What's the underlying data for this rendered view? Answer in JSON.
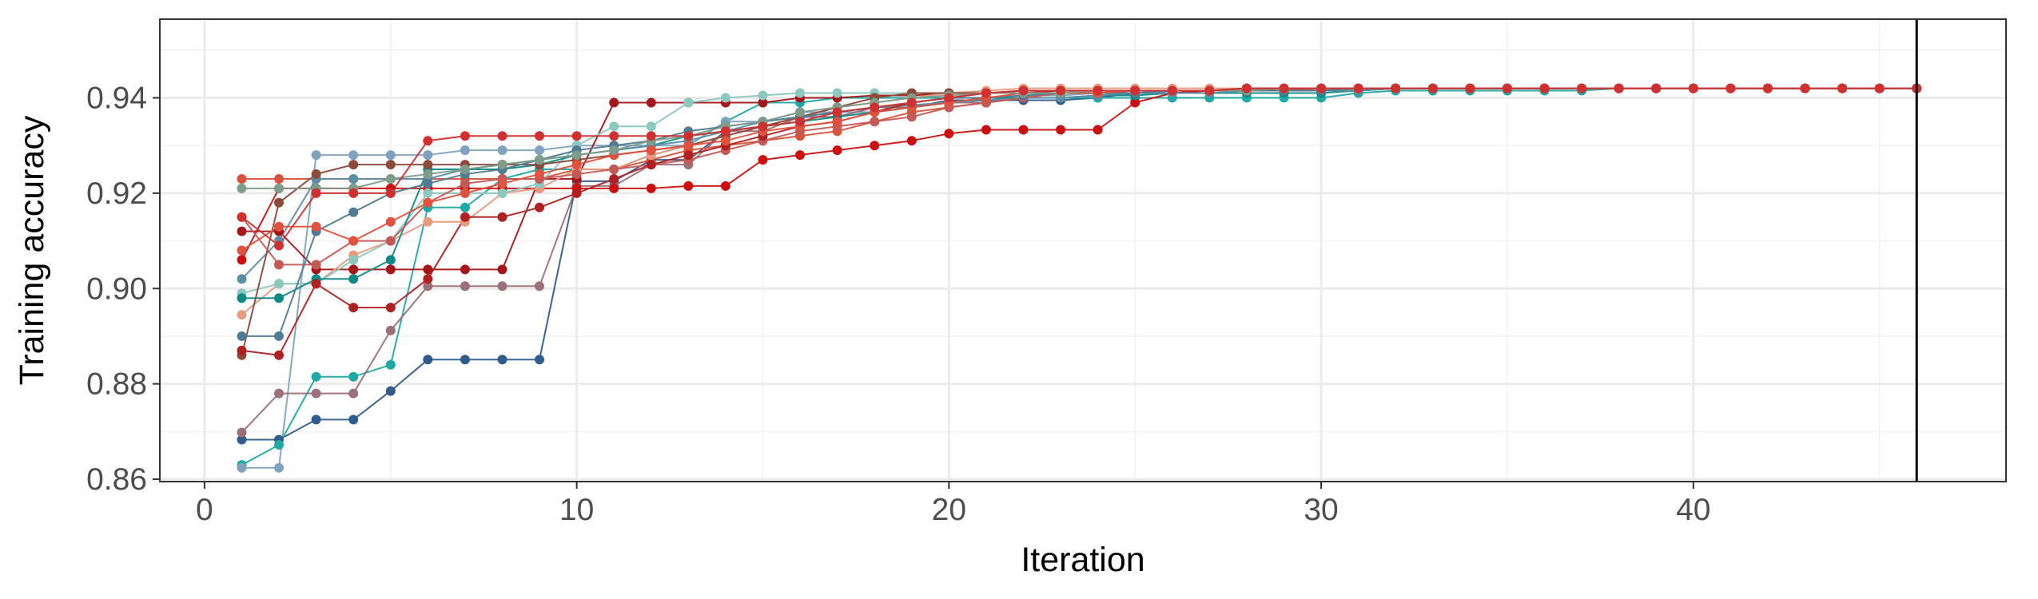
{
  "chart_data": {
    "type": "line",
    "title": "",
    "xlabel": "Iteration",
    "ylabel": "Training accuracy",
    "xlim": [
      -1.2,
      48.4
    ],
    "ylim": [
      0.8595,
      0.9565
    ],
    "x_ticks": [
      0,
      10,
      20,
      30,
      40
    ],
    "x_tick_labels": [
      "0",
      "10",
      "20",
      "30",
      "40"
    ],
    "y_ticks": [
      0.86,
      0.88,
      0.9,
      0.92,
      0.94
    ],
    "y_tick_labels": [
      "0.86",
      "0.88",
      "0.90",
      "0.92",
      "0.94"
    ],
    "grid": true,
    "legend": "none",
    "vline_x": 46,
    "final_value": 0.942,
    "series": [
      {
        "color": "#2F5C8C",
        "values": [
          0.8683,
          0.8683,
          0.8725,
          0.8725,
          0.8785,
          0.8851,
          0.8851,
          0.8851,
          0.8851,
          0.9225,
          0.9225,
          0.927,
          0.927,
          0.933,
          0.934,
          0.936,
          0.936,
          0.938,
          0.938,
          0.9395,
          0.9395,
          0.9395,
          0.9395,
          0.94,
          0.941,
          0.9415,
          0.9415,
          0.9415,
          0.9415,
          0.9415,
          0.9415,
          0.942,
          0.942,
          0.942,
          0.942,
          0.942,
          0.942,
          0.942,
          0.942,
          0.942,
          0.942,
          0.942,
          0.942,
          0.942,
          0.942,
          0.942
        ]
      },
      {
        "color": "#1FA9A6",
        "values": [
          0.863,
          0.8672,
          0.8815,
          0.8815,
          0.884,
          0.917,
          0.917,
          0.923,
          0.925,
          0.925,
          0.925,
          0.928,
          0.93,
          0.935,
          0.939,
          0.939,
          0.94,
          0.94,
          0.94,
          0.94,
          0.94,
          0.94,
          0.94,
          0.94,
          0.94,
          0.94,
          0.94,
          0.94,
          0.94,
          0.94,
          0.941,
          0.9415,
          0.9415,
          0.9415,
          0.9415,
          0.9415,
          0.9415,
          0.942,
          0.942,
          0.942,
          0.942,
          0.942,
          0.942,
          0.942,
          0.942,
          0.942
        ]
      },
      {
        "color": "#7FA3BE",
        "values": [
          0.8624,
          0.8624,
          0.928,
          0.928,
          0.928,
          0.928,
          0.929,
          0.929,
          0.929,
          0.93,
          0.93,
          0.93,
          0.93,
          0.935,
          0.935,
          0.937,
          0.937,
          0.937,
          0.938,
          0.939,
          0.94,
          0.9405,
          0.9405,
          0.941,
          0.941,
          0.941,
          0.9415,
          0.9415,
          0.9415,
          0.9415,
          0.9415,
          0.942,
          0.942,
          0.942,
          0.942,
          0.942,
          0.942,
          0.942,
          0.942,
          0.942,
          0.942,
          0.942,
          0.942,
          0.942,
          0.942,
          0.942
        ]
      },
      {
        "color": "#9B7078",
        "values": [
          0.8698,
          0.878,
          0.878,
          0.878,
          0.8912,
          0.9005,
          0.9005,
          0.9005,
          0.9005,
          0.9215,
          0.9215,
          0.926,
          0.926,
          0.933,
          0.933,
          0.936,
          0.936,
          0.938,
          0.938,
          0.939,
          0.939,
          0.94,
          0.94,
          0.9405,
          0.941,
          0.9415,
          0.9415,
          0.9415,
          0.9415,
          0.9415,
          0.9415,
          0.942,
          0.942,
          0.942,
          0.942,
          0.942,
          0.942,
          0.942,
          0.942,
          0.942,
          0.942,
          0.942,
          0.942,
          0.942,
          0.942,
          0.942
        ]
      },
      {
        "color": "#CC1010",
        "values": [
          0.906,
          0.921,
          0.921,
          0.921,
          0.921,
          0.921,
          0.921,
          0.921,
          0.921,
          0.921,
          0.921,
          0.921,
          0.9215,
          0.9215,
          0.927,
          0.928,
          0.929,
          0.93,
          0.931,
          0.9325,
          0.9333,
          0.9333,
          0.9333,
          0.9333,
          0.939,
          0.941,
          0.9415,
          0.9415,
          0.9415,
          0.9415,
          0.9415,
          0.942,
          0.942,
          0.942,
          0.942,
          0.942,
          0.942,
          0.942,
          0.942,
          0.942,
          0.942,
          0.942,
          0.942,
          0.942,
          0.942,
          0.942
        ]
      },
      {
        "color": "#A4161A",
        "values": [
          0.912,
          0.912,
          0.904,
          0.904,
          0.904,
          0.904,
          0.904,
          0.904,
          0.923,
          0.923,
          0.939,
          0.939,
          0.939,
          0.939,
          0.939,
          0.94,
          0.94,
          0.9405,
          0.9405,
          0.941,
          0.941,
          0.941,
          0.941,
          0.9415,
          0.9415,
          0.9415,
          0.9415,
          0.9415,
          0.9415,
          0.942,
          0.942,
          0.942,
          0.942,
          0.942,
          0.942,
          0.942,
          0.942,
          0.942,
          0.942,
          0.942,
          0.942,
          0.942,
          0.942,
          0.942,
          0.942,
          0.942
        ]
      },
      {
        "color": "#D9533A",
        "values": [
          0.923,
          0.923,
          0.923,
          0.923,
          0.923,
          0.923,
          0.923,
          0.923,
          0.923,
          0.925,
          0.925,
          0.927,
          0.929,
          0.93,
          0.931,
          0.932,
          0.933,
          0.935,
          0.937,
          0.938,
          0.939,
          0.94,
          0.941,
          0.941,
          0.9415,
          0.9415,
          0.9415,
          0.9415,
          0.9415,
          0.9415,
          0.942,
          0.942,
          0.942,
          0.942,
          0.942,
          0.942,
          0.942,
          0.942,
          0.942,
          0.942,
          0.942,
          0.942,
          0.942,
          0.942,
          0.942,
          0.942
        ]
      },
      {
        "color": "#E89A7E",
        "values": [
          0.8945,
          0.901,
          0.901,
          0.907,
          0.91,
          0.914,
          0.914,
          0.92,
          0.921,
          0.925,
          0.925,
          0.928,
          0.93,
          0.932,
          0.934,
          0.936,
          0.938,
          0.939,
          0.94,
          0.941,
          0.9415,
          0.942,
          0.942,
          0.942,
          0.942,
          0.942,
          0.942,
          0.942,
          0.942,
          0.942,
          0.942,
          0.942,
          0.942,
          0.942,
          0.942,
          0.942,
          0.942,
          0.942,
          0.942,
          0.942,
          0.942,
          0.942,
          0.942,
          0.942,
          0.942,
          0.942
        ]
      },
      {
        "color": "#8AC8C0",
        "values": [
          0.899,
          0.901,
          0.901,
          0.906,
          0.91,
          0.92,
          0.92,
          0.92,
          0.922,
          0.93,
          0.934,
          0.934,
          0.939,
          0.94,
          0.9405,
          0.941,
          0.941,
          0.941,
          0.941,
          0.941,
          0.941,
          0.941,
          0.941,
          0.9415,
          0.9415,
          0.9415,
          0.9415,
          0.9415,
          0.9415,
          0.9415,
          0.942,
          0.942,
          0.942,
          0.942,
          0.942,
          0.942,
          0.942,
          0.942,
          0.942,
          0.942,
          0.942,
          0.942,
          0.942,
          0.942,
          0.942,
          0.942
        ]
      },
      {
        "color": "#0E8A86",
        "values": [
          0.898,
          0.898,
          0.902,
          0.902,
          0.906,
          0.925,
          0.925,
          0.925,
          0.926,
          0.928,
          0.929,
          0.93,
          0.932,
          0.933,
          0.934,
          0.935,
          0.936,
          0.937,
          0.938,
          0.939,
          0.94,
          0.94,
          0.94,
          0.9405,
          0.9405,
          0.941,
          0.941,
          0.941,
          0.941,
          0.941,
          0.9415,
          0.942,
          0.942,
          0.942,
          0.942,
          0.942,
          0.942,
          0.942,
          0.942,
          0.942,
          0.942,
          0.942,
          0.942,
          0.942,
          0.942,
          0.942
        ]
      },
      {
        "color": "#5B8FA8",
        "values": [
          0.902,
          0.91,
          0.923,
          0.923,
          0.923,
          0.923,
          0.925,
          0.926,
          0.927,
          0.928,
          0.929,
          0.93,
          0.931,
          0.933,
          0.935,
          0.936,
          0.937,
          0.938,
          0.9385,
          0.939,
          0.9395,
          0.94,
          0.94,
          0.9405,
          0.941,
          0.941,
          0.941,
          0.9415,
          0.9415,
          0.9415,
          0.9415,
          0.942,
          0.942,
          0.942,
          0.942,
          0.942,
          0.942,
          0.942,
          0.942,
          0.942,
          0.942,
          0.942,
          0.942,
          0.942,
          0.942,
          0.942
        ]
      },
      {
        "color": "#8C4A3A",
        "values": [
          0.886,
          0.918,
          0.924,
          0.926,
          0.926,
          0.926,
          0.926,
          0.926,
          0.926,
          0.927,
          0.928,
          0.929,
          0.93,
          0.932,
          0.934,
          0.936,
          0.938,
          0.94,
          0.941,
          0.941,
          0.941,
          0.9415,
          0.9415,
          0.9415,
          0.9415,
          0.9415,
          0.9415,
          0.942,
          0.942,
          0.942,
          0.942,
          0.942,
          0.942,
          0.942,
          0.942,
          0.942,
          0.942,
          0.942,
          0.942,
          0.942,
          0.942,
          0.942,
          0.942,
          0.942,
          0.942,
          0.942
        ]
      },
      {
        "color": "#C45A55",
        "values": [
          0.915,
          0.905,
          0.905,
          0.91,
          0.91,
          0.918,
          0.922,
          0.923,
          0.923,
          0.924,
          0.925,
          0.926,
          0.927,
          0.929,
          0.931,
          0.933,
          0.934,
          0.935,
          0.936,
          0.938,
          0.939,
          0.94,
          0.941,
          0.941,
          0.9415,
          0.9415,
          0.9415,
          0.9415,
          0.9415,
          0.942,
          0.942,
          0.942,
          0.942,
          0.942,
          0.942,
          0.942,
          0.942,
          0.942,
          0.942,
          0.942,
          0.942,
          0.942,
          0.942,
          0.942,
          0.942,
          0.942
        ]
      },
      {
        "color": "#B02020",
        "values": [
          0.887,
          0.886,
          0.901,
          0.896,
          0.896,
          0.902,
          0.915,
          0.915,
          0.917,
          0.92,
          0.923,
          0.926,
          0.928,
          0.93,
          0.932,
          0.934,
          0.935,
          0.937,
          0.939,
          0.94,
          0.941,
          0.941,
          0.9415,
          0.9415,
          0.9415,
          0.9415,
          0.9415,
          0.942,
          0.942,
          0.942,
          0.942,
          0.942,
          0.942,
          0.942,
          0.942,
          0.942,
          0.942,
          0.942,
          0.942,
          0.942,
          0.942,
          0.942,
          0.942,
          0.942,
          0.942,
          0.942
        ]
      },
      {
        "color": "#4F7C94",
        "values": [
          0.89,
          0.89,
          0.912,
          0.916,
          0.92,
          0.922,
          0.924,
          0.925,
          0.927,
          0.929,
          0.93,
          0.931,
          0.933,
          0.934,
          0.935,
          0.936,
          0.937,
          0.938,
          0.939,
          0.94,
          0.94,
          0.9405,
          0.941,
          0.941,
          0.941,
          0.9415,
          0.9415,
          0.9415,
          0.9415,
          0.9415,
          0.942,
          0.942,
          0.942,
          0.942,
          0.942,
          0.942,
          0.942,
          0.942,
          0.942,
          0.942,
          0.942,
          0.942,
          0.942,
          0.942,
          0.942,
          0.942
        ]
      },
      {
        "color": "#E0523D",
        "values": [
          0.908,
          0.913,
          0.913,
          0.91,
          0.914,
          0.918,
          0.92,
          0.922,
          0.924,
          0.926,
          0.928,
          0.929,
          0.93,
          0.931,
          0.933,
          0.934,
          0.935,
          0.937,
          0.938,
          0.939,
          0.94,
          0.941,
          0.941,
          0.941,
          0.9415,
          0.9415,
          0.9415,
          0.9415,
          0.942,
          0.942,
          0.942,
          0.942,
          0.942,
          0.942,
          0.942,
          0.942,
          0.942,
          0.942,
          0.942,
          0.942,
          0.942,
          0.942,
          0.942,
          0.942,
          0.942,
          0.942
        ]
      },
      {
        "color": "#7E9C8A",
        "values": [
          0.921,
          0.921,
          0.921,
          0.921,
          0.923,
          0.924,
          0.925,
          0.926,
          0.927,
          0.928,
          0.929,
          0.931,
          0.932,
          0.934,
          0.935,
          0.937,
          0.938,
          0.939,
          0.94,
          0.9405,
          0.941,
          0.941,
          0.941,
          0.9415,
          0.9415,
          0.9415,
          0.9415,
          0.9415,
          0.942,
          0.942,
          0.942,
          0.942,
          0.942,
          0.942,
          0.942,
          0.942,
          0.942,
          0.942,
          0.942,
          0.942,
          0.942,
          0.942,
          0.942,
          0.942,
          0.942,
          0.942
        ]
      },
      {
        "color": "#D03030",
        "values": [
          0.915,
          0.909,
          0.92,
          0.92,
          0.92,
          0.931,
          0.932,
          0.932,
          0.932,
          0.932,
          0.932,
          0.932,
          0.932,
          0.933,
          0.934,
          0.935,
          0.937,
          0.938,
          0.939,
          0.94,
          0.941,
          0.9415,
          0.9415,
          0.9415,
          0.9415,
          0.9415,
          0.9415,
          0.942,
          0.942,
          0.942,
          0.942,
          0.942,
          0.942,
          0.942,
          0.942,
          0.942,
          0.942,
          0.942,
          0.942,
          0.942,
          0.942,
          0.942,
          0.942,
          0.942,
          0.942,
          0.942
        ]
      }
    ]
  }
}
